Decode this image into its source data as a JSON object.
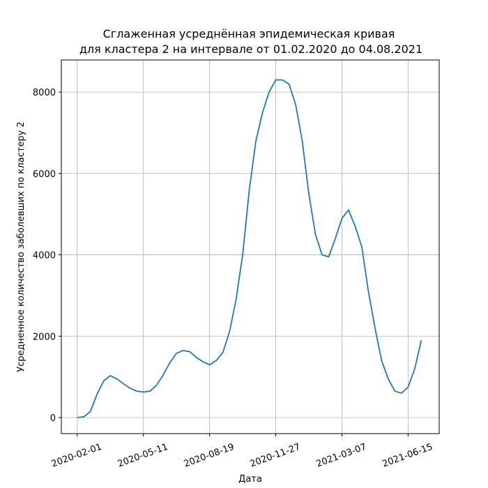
{
  "chart_data": {
    "type": "line",
    "title": [
      "Сглаженная усреднённая эпидемическая кривая",
      "для кластера 2 на интервале от 01.02.2020 до 04.08.2021"
    ],
    "x_label": "Дата",
    "y_label": "Усредненное количество заболевших по кластеру 2",
    "x": [
      "2020-02-01",
      "2020-02-11",
      "2020-02-21",
      "2020-03-02",
      "2020-03-12",
      "2020-03-22",
      "2020-04-01",
      "2020-04-11",
      "2020-04-21",
      "2020-05-01",
      "2020-05-11",
      "2020-05-21",
      "2020-05-31",
      "2020-06-10",
      "2020-06-20",
      "2020-06-30",
      "2020-07-10",
      "2020-07-20",
      "2020-07-30",
      "2020-08-09",
      "2020-08-19",
      "2020-08-29",
      "2020-09-08",
      "2020-09-18",
      "2020-09-28",
      "2020-10-08",
      "2020-10-18",
      "2020-10-28",
      "2020-11-07",
      "2020-11-17",
      "2020-11-27",
      "2020-12-07",
      "2020-12-17",
      "2020-12-27",
      "2021-01-06",
      "2021-01-16",
      "2021-01-26",
      "2021-02-05",
      "2021-02-15",
      "2021-02-25",
      "2021-03-07",
      "2021-03-17",
      "2021-03-27",
      "2021-04-06",
      "2021-04-16",
      "2021-04-26",
      "2021-05-06",
      "2021-05-16",
      "2021-05-26",
      "2021-06-05",
      "2021-06-15",
      "2021-06-25",
      "2021-07-05"
    ],
    "series": [
      {
        "name": "cluster 2",
        "color": "#1f77b4",
        "values": [
          0,
          20,
          150,
          580,
          900,
          1030,
          950,
          830,
          720,
          650,
          630,
          650,
          800,
          1050,
          1350,
          1580,
          1650,
          1620,
          1480,
          1370,
          1300,
          1400,
          1600,
          2100,
          2900,
          4000,
          5600,
          6800,
          7500,
          8000,
          8300,
          8300,
          8200,
          7700,
          6800,
          5500,
          4500,
          4000,
          3950,
          4400,
          4900,
          5100,
          4700,
          4200,
          3100,
          2200,
          1400,
          950,
          650,
          600,
          750,
          1200,
          1900
        ]
      }
    ],
    "xlim": [
      "2020-01-08",
      "2021-08-01"
    ],
    "xticks": [
      "2020-02-01",
      "2020-05-11",
      "2020-08-19",
      "2020-11-27",
      "2021-03-07",
      "2021-06-15"
    ],
    "ylim": [
      -394,
      8790
    ],
    "yticks": [
      0,
      2000,
      4000,
      6000,
      8000
    ],
    "grid": true
  }
}
